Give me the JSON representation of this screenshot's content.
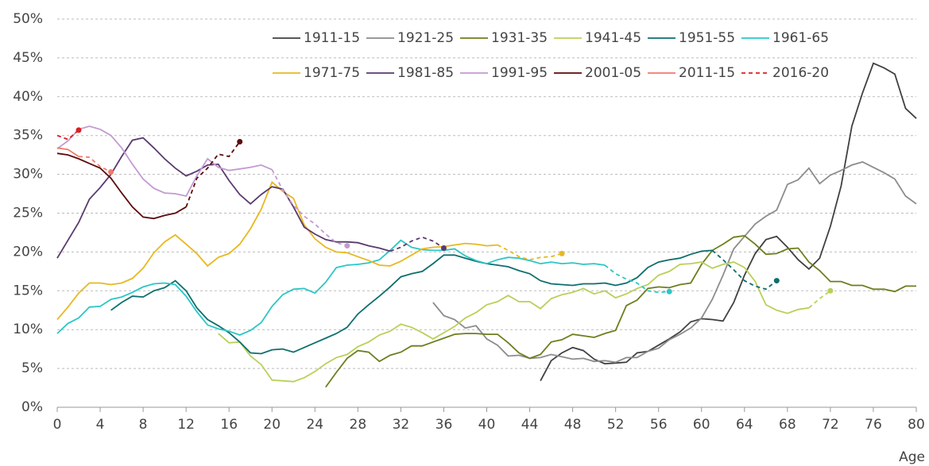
{
  "chart_data": {
    "type": "line",
    "x_label": "Age",
    "xlim": [
      0,
      80
    ],
    "xticks": [
      0,
      4,
      8,
      12,
      16,
      20,
      24,
      28,
      32,
      36,
      40,
      44,
      48,
      52,
      56,
      60,
      64,
      68,
      72,
      76,
      80
    ],
    "ylim": [
      0,
      50
    ],
    "yticks": [
      {
        "value": 0,
        "label": "0%"
      },
      {
        "value": 5,
        "label": "5%"
      },
      {
        "value": 10,
        "label": "10%"
      },
      {
        "value": 15,
        "label": "15%"
      },
      {
        "value": 20,
        "label": "20%"
      },
      {
        "value": 25,
        "label": "25%"
      },
      {
        "value": 30,
        "label": "30%"
      },
      {
        "value": 35,
        "label": "35%"
      },
      {
        "value": 40,
        "label": "40%"
      },
      {
        "value": 45,
        "label": "45%"
      },
      {
        "value": 50,
        "label": "50%"
      }
    ],
    "grid": true,
    "legend": "top",
    "series": [
      {
        "name": "1911-15",
        "color": "#404040",
        "x": [
          45,
          46,
          47,
          48,
          49,
          50,
          51,
          52,
          53,
          54,
          55,
          56,
          57,
          58,
          59,
          60,
          61,
          62,
          63,
          64,
          65,
          66,
          67,
          68,
          69,
          70,
          71,
          72,
          73,
          74,
          75,
          76,
          77,
          78,
          79,
          80
        ],
        "values": [
          3.4,
          6.0,
          7.0,
          7.7,
          7.3,
          6.2,
          5.6,
          5.7,
          5.8,
          7.0,
          7.2,
          8.0,
          8.8,
          9.7,
          11.0,
          11.4,
          11.3,
          11.1,
          13.5,
          17.0,
          19.8,
          21.6,
          22.0,
          20.6,
          19.0,
          17.8,
          19.2,
          23.3,
          28.5,
          36.2,
          40.5,
          44.3,
          43.7,
          42.9,
          38.5,
          37.2
        ]
      },
      {
        "name": "1921-25",
        "color": "#8c8c8c",
        "x": [
          35,
          36,
          37,
          38,
          39,
          40,
          41,
          42,
          43,
          44,
          45,
          46,
          47,
          48,
          49,
          50,
          51,
          52,
          53,
          54,
          55,
          56,
          57,
          58,
          59,
          60,
          61,
          62,
          63,
          64,
          65,
          66,
          67,
          68,
          69,
          70,
          71,
          72,
          73,
          74,
          75,
          76,
          77,
          78,
          79,
          80
        ],
        "values": [
          13.5,
          11.8,
          11.3,
          10.2,
          10.5,
          8.8,
          8.0,
          6.6,
          6.7,
          6.3,
          6.4,
          6.8,
          6.5,
          6.2,
          6.3,
          5.9,
          6.0,
          5.8,
          6.4,
          6.4,
          7.2,
          7.6,
          8.7,
          9.4,
          10.2,
          11.5,
          13.9,
          17.0,
          20.4,
          22.0,
          23.6,
          24.6,
          25.4,
          28.7,
          29.3,
          30.8,
          28.8,
          29.9,
          30.5,
          31.2,
          31.6,
          30.9,
          30.2,
          29.4,
          27.2,
          26.2
        ]
      },
      {
        "name": "1931-35",
        "color": "#6b7f1d",
        "x": [
          25,
          26,
          27,
          28,
          29,
          30,
          31,
          32,
          33,
          34,
          35,
          36,
          37,
          38,
          39,
          40,
          41,
          42,
          43,
          44,
          45,
          46,
          47,
          48,
          49,
          50,
          51,
          52,
          53,
          54,
          55,
          56,
          57,
          58,
          59,
          60,
          61,
          62,
          63,
          64,
          65,
          66,
          67,
          68,
          69,
          70,
          71,
          72,
          73,
          74,
          75,
          76,
          77,
          78,
          79,
          80
        ],
        "values": [
          2.6,
          4.5,
          6.3,
          7.3,
          7.1,
          5.9,
          6.7,
          7.1,
          7.9,
          7.9,
          8.4,
          8.9,
          9.4,
          9.5,
          9.5,
          9.4,
          9.4,
          8.3,
          7.0,
          6.3,
          6.8,
          8.4,
          8.7,
          9.4,
          9.2,
          9.0,
          9.5,
          9.9,
          13.1,
          13.8,
          15.3,
          15.5,
          15.4,
          15.8,
          16.0,
          18.4,
          20.2,
          21.0,
          21.9,
          22.1,
          21.0,
          19.7,
          19.8,
          20.4,
          20.5,
          18.7,
          17.6,
          16.2,
          16.2,
          15.7,
          15.7,
          15.2,
          15.2,
          14.9,
          15.6,
          15.6
        ]
      },
      {
        "name": "1941-45",
        "color": "#b8d05a",
        "dashed_from": 70,
        "x": [
          15,
          16,
          17,
          18,
          19,
          20,
          21,
          22,
          23,
          24,
          25,
          26,
          27,
          28,
          29,
          30,
          31,
          32,
          33,
          34,
          35,
          36,
          37,
          38,
          39,
          40,
          41,
          42,
          43,
          44,
          45,
          46,
          47,
          48,
          49,
          50,
          51,
          52,
          53,
          54,
          55,
          56,
          57,
          58,
          59,
          60,
          61,
          62,
          63,
          64,
          65,
          66,
          67,
          68,
          69,
          70,
          71,
          72
        ],
        "values": [
          9.5,
          8.3,
          8.4,
          6.6,
          5.5,
          3.5,
          3.4,
          3.3,
          3.8,
          4.6,
          5.6,
          6.4,
          6.8,
          7.8,
          8.4,
          9.3,
          9.8,
          10.7,
          10.3,
          9.6,
          8.8,
          9.6,
          10.4,
          11.5,
          12.2,
          13.2,
          13.6,
          14.4,
          13.6,
          13.6,
          12.7,
          14.0,
          14.5,
          14.8,
          15.3,
          14.6,
          15.0,
          14.1,
          14.6,
          15.3,
          15.8,
          17.0,
          17.5,
          18.4,
          18.5,
          18.7,
          17.9,
          18.4,
          18.7,
          18.0,
          16.2,
          13.2,
          12.5,
          12.1,
          12.6,
          12.8,
          14.0,
          15.0
        ]
      },
      {
        "name": "1951-55",
        "color": "#0e6e6e",
        "dashed_from": 61,
        "x": [
          5,
          6,
          7,
          8,
          9,
          10,
          11,
          12,
          13,
          14,
          15,
          16,
          17,
          18,
          19,
          20,
          21,
          22,
          23,
          24,
          25,
          26,
          27,
          28,
          29,
          30,
          31,
          32,
          33,
          34,
          35,
          36,
          37,
          38,
          39,
          40,
          41,
          42,
          43,
          44,
          45,
          46,
          47,
          48,
          49,
          50,
          51,
          52,
          53,
          54,
          55,
          56,
          57,
          58,
          59,
          60,
          61,
          62,
          63,
          64,
          65,
          66,
          67
        ],
        "values": [
          12.5,
          13.5,
          14.3,
          14.2,
          15.0,
          15.4,
          16.3,
          15.0,
          12.8,
          11.3,
          10.5,
          9.6,
          8.4,
          7.0,
          6.9,
          7.4,
          7.5,
          7.1,
          7.7,
          8.3,
          8.9,
          9.5,
          10.3,
          12.0,
          13.2,
          14.3,
          15.5,
          16.8,
          17.2,
          17.5,
          18.5,
          19.6,
          19.6,
          19.2,
          18.8,
          18.5,
          18.3,
          18.1,
          17.6,
          17.2,
          16.3,
          15.9,
          15.8,
          15.7,
          15.9,
          15.9,
          16.0,
          15.7,
          16.0,
          16.7,
          18.0,
          18.7,
          19.0,
          19.2,
          19.7,
          20.1,
          20.2,
          19.0,
          17.7,
          16.3,
          15.6,
          15.2,
          16.3
        ]
      },
      {
        "name": "1961-65",
        "color": "#2cc6c6",
        "dashed_from": 51,
        "x": [
          0,
          1,
          2,
          3,
          4,
          5,
          6,
          7,
          8,
          9,
          10,
          11,
          12,
          13,
          14,
          15,
          16,
          17,
          18,
          19,
          20,
          21,
          22,
          23,
          24,
          25,
          26,
          27,
          28,
          29,
          30,
          31,
          32,
          33,
          34,
          35,
          36,
          37,
          38,
          39,
          40,
          41,
          42,
          43,
          44,
          45,
          46,
          47,
          48,
          49,
          50,
          51,
          52,
          53,
          54,
          55,
          56,
          57
        ],
        "values": [
          9.5,
          10.8,
          11.5,
          12.9,
          13.0,
          13.9,
          14.2,
          14.8,
          15.5,
          15.9,
          16.0,
          15.8,
          14.3,
          12.3,
          10.6,
          10.1,
          9.8,
          9.3,
          9.9,
          10.9,
          13.0,
          14.5,
          15.2,
          15.3,
          14.7,
          16.1,
          18.0,
          18.3,
          18.4,
          18.6,
          19.0,
          20.2,
          21.5,
          20.6,
          20.3,
          20.2,
          20.2,
          20.4,
          19.5,
          18.9,
          18.5,
          19.0,
          19.3,
          19.2,
          18.9,
          18.5,
          18.7,
          18.5,
          18.6,
          18.4,
          18.5,
          18.3,
          17.2,
          16.5,
          16.0,
          15.0,
          14.8,
          14.9
        ]
      },
      {
        "name": "1971-75",
        "color": "#e8b820",
        "dashed_from": 41,
        "x": [
          0,
          1,
          2,
          3,
          4,
          5,
          6,
          7,
          8,
          9,
          10,
          11,
          12,
          13,
          14,
          15,
          16,
          17,
          18,
          19,
          20,
          21,
          22,
          23,
          24,
          25,
          26,
          27,
          28,
          29,
          30,
          31,
          32,
          33,
          34,
          35,
          36,
          37,
          38,
          39,
          40,
          41,
          42,
          43,
          44,
          45,
          46,
          47
        ],
        "values": [
          11.3,
          12.9,
          14.7,
          16.0,
          16.0,
          15.8,
          16.0,
          16.6,
          17.9,
          19.9,
          21.3,
          22.2,
          21.0,
          19.8,
          18.2,
          19.3,
          19.8,
          21.0,
          23.0,
          25.5,
          29.0,
          27.8,
          26.9,
          23.5,
          21.7,
          20.6,
          20.0,
          19.9,
          19.4,
          18.9,
          18.3,
          18.2,
          18.8,
          19.6,
          20.4,
          20.6,
          20.7,
          20.9,
          21.1,
          21.0,
          20.8,
          20.9,
          20.2,
          19.4,
          19.0,
          19.3,
          19.4,
          19.8
        ]
      },
      {
        "name": "1981-85",
        "color": "#5a3a6e",
        "dashed_from": 31,
        "x": [
          0,
          1,
          2,
          3,
          4,
          5,
          6,
          7,
          8,
          9,
          10,
          11,
          12,
          13,
          14,
          15,
          16,
          17,
          18,
          19,
          20,
          21,
          22,
          23,
          24,
          25,
          26,
          27,
          28,
          29,
          30,
          31,
          32,
          33,
          34,
          35,
          36
        ],
        "values": [
          19.2,
          21.5,
          23.8,
          26.8,
          28.3,
          30.0,
          32.3,
          34.4,
          34.7,
          33.4,
          32.0,
          30.8,
          29.8,
          30.4,
          31.2,
          31.3,
          29.2,
          27.4,
          26.2,
          27.4,
          28.4,
          28.1,
          25.8,
          23.2,
          22.3,
          21.6,
          21.3,
          21.3,
          21.2,
          20.8,
          20.5,
          20.1,
          20.6,
          21.4,
          21.9,
          21.4,
          20.5
        ]
      },
      {
        "name": "1991-95",
        "color": "#c39ad0",
        "dashed_from": 20,
        "x": [
          0,
          1,
          2,
          3,
          4,
          5,
          6,
          7,
          8,
          9,
          10,
          11,
          12,
          13,
          14,
          15,
          16,
          17,
          18,
          19,
          20,
          21,
          22,
          23,
          24,
          25,
          26,
          27
        ],
        "values": [
          33.3,
          34.3,
          35.8,
          36.2,
          35.8,
          35.0,
          33.4,
          31.3,
          29.4,
          28.2,
          27.6,
          27.5,
          27.2,
          29.8,
          32.0,
          30.9,
          30.5,
          30.7,
          30.9,
          31.2,
          30.6,
          28.0,
          26.0,
          24.6,
          23.6,
          22.3,
          21.2,
          20.8
        ]
      },
      {
        "name": "2001-05",
        "color": "#5c0a0a",
        "dashed_from": 12,
        "x": [
          0,
          1,
          2,
          3,
          4,
          5,
          6,
          7,
          8,
          9,
          10,
          11,
          12,
          13,
          14,
          15,
          16,
          17
        ],
        "values": [
          32.7,
          32.5,
          32.0,
          31.4,
          30.8,
          29.5,
          27.6,
          25.8,
          24.5,
          24.3,
          24.7,
          25.0,
          25.8,
          29.5,
          30.8,
          32.6,
          32.3,
          34.2
        ]
      },
      {
        "name": "2011-15",
        "color": "#f07a6a",
        "dashed_from": 2,
        "x": [
          0,
          1,
          2,
          3,
          4,
          5
        ],
        "values": [
          33.4,
          33.2,
          32.3,
          32.2,
          31.0,
          30.3
        ]
      },
      {
        "name": "2016-20",
        "color": "#e01e1e",
        "dashed_from": 0,
        "x": [
          0,
          1,
          2
        ],
        "values": [
          35.0,
          34.5,
          35.7
        ]
      }
    ]
  }
}
